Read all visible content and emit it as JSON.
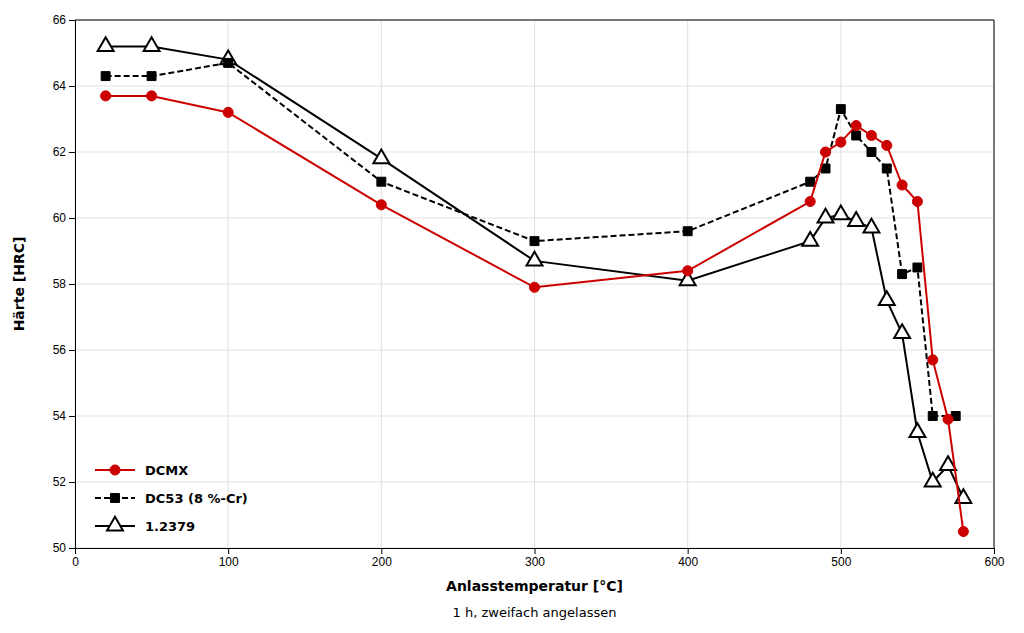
{
  "chart_data": {
    "type": "line",
    "x_label": "Anlasstemperatur [°C]",
    "x_label_note": "1 h, zweifach angelassen",
    "y_label": "Härte [HRC]",
    "series": [
      {
        "name": "DCMX",
        "color": "#cc0000",
        "marker": "circle",
        "line_style": "solid",
        "x": [
          20,
          50,
          100,
          200,
          300,
          400,
          480,
          490,
          500,
          510,
          520,
          530,
          540,
          550,
          560,
          570,
          580
        ],
        "values": [
          63.7,
          63.7,
          63.2,
          60.4,
          57.9,
          58.4,
          60.5,
          62.0,
          62.3,
          62.8,
          62.5,
          62.2,
          61.0,
          60.5,
          55.7,
          53.9,
          50.5
        ]
      },
      {
        "name": "DC53 (8 %-Cr)",
        "color": "#000000",
        "marker": "square",
        "line_style": "dashed",
        "x": [
          20,
          50,
          100,
          200,
          300,
          400,
          480,
          490,
          500,
          510,
          520,
          530,
          540,
          550,
          560,
          575
        ],
        "values": [
          64.3,
          64.3,
          64.7,
          61.1,
          59.3,
          59.6,
          61.1,
          61.5,
          63.3,
          62.5,
          62.0,
          61.5,
          58.3,
          58.5,
          54.0,
          54.0
        ]
      },
      {
        "name": "1.2379",
        "color": "#000000",
        "marker": "triangle-open",
        "line_style": "solid",
        "x": [
          20,
          50,
          100,
          200,
          300,
          400,
          480,
          490,
          500,
          510,
          520,
          530,
          540,
          550,
          560,
          570,
          580
        ],
        "values": [
          65.2,
          65.2,
          64.8,
          61.8,
          58.7,
          58.1,
          59.3,
          60.0,
          60.1,
          59.9,
          59.7,
          57.5,
          56.5,
          53.5,
          52.0,
          52.5,
          51.5
        ]
      }
    ],
    "xlim": [
      0,
      600
    ],
    "xticks": [
      0,
      100,
      200,
      300,
      400,
      500,
      600
    ],
    "ylim": [
      50,
      66
    ],
    "yticks": [
      50,
      52,
      54,
      56,
      58,
      60,
      62,
      64,
      66
    ],
    "grid": true,
    "legend": "lower left"
  }
}
